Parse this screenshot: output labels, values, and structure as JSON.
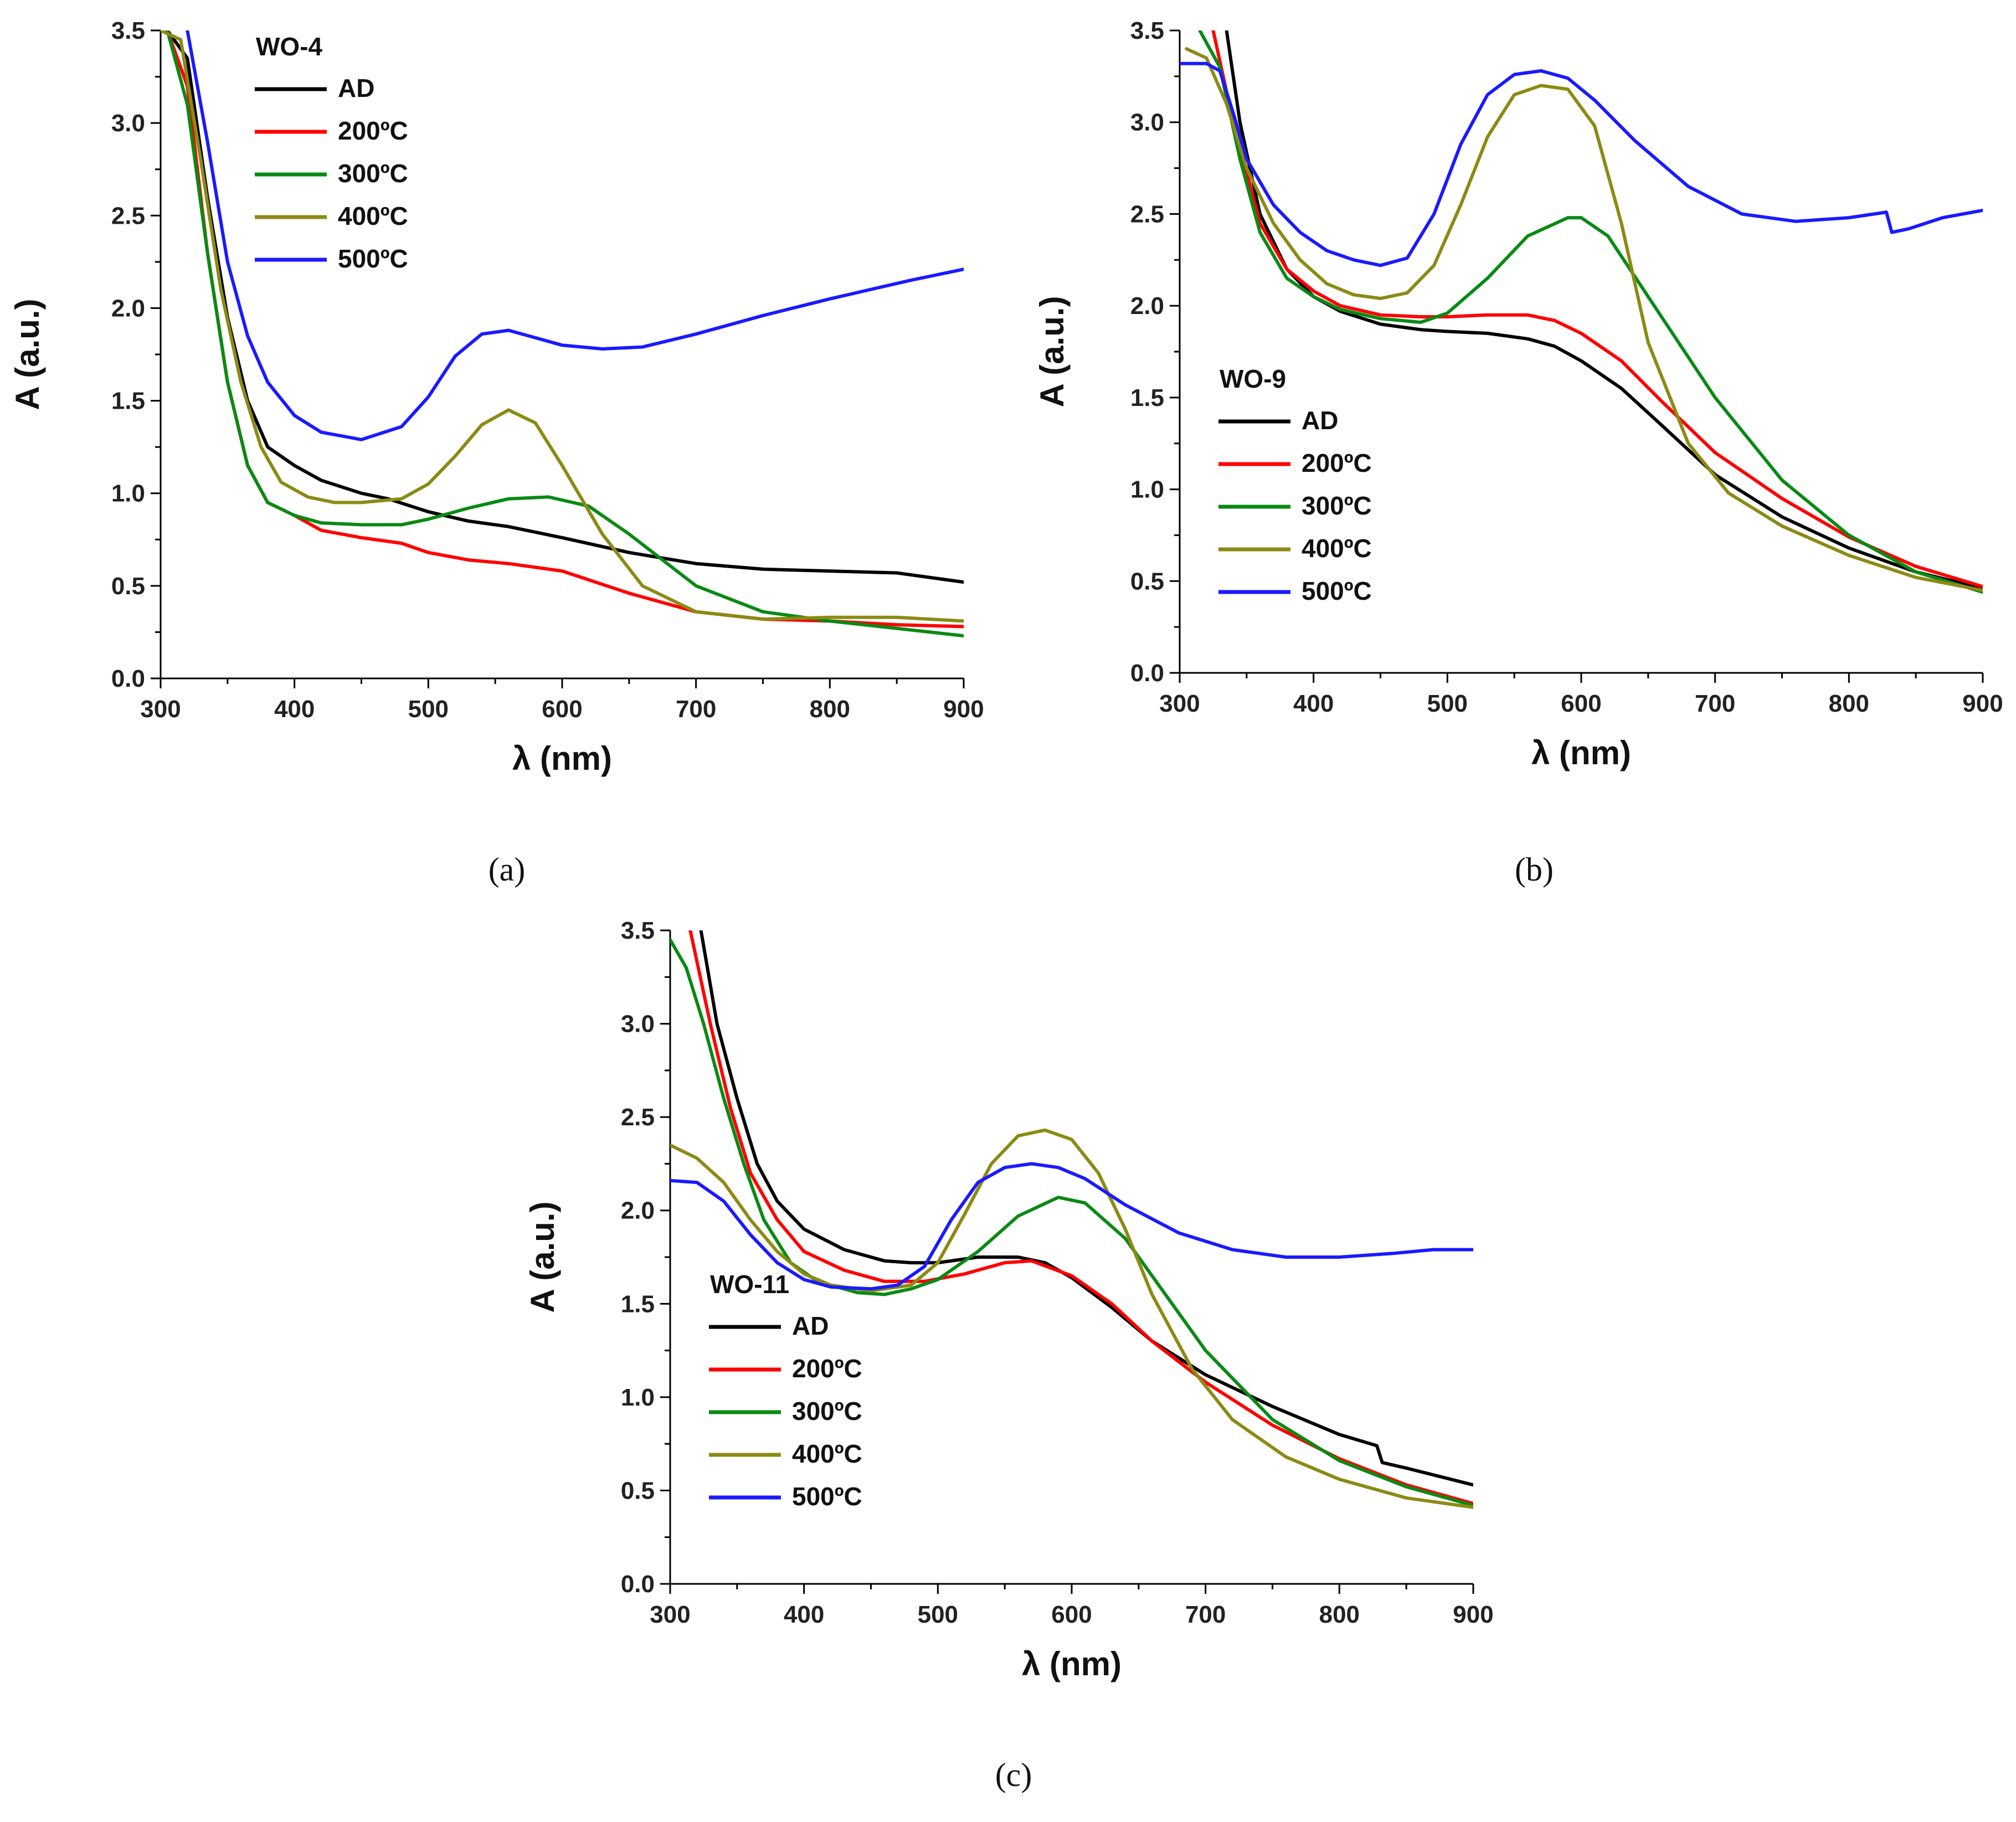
{
  "chart_data": [
    {
      "type": "line",
      "caption": "(a)",
      "legend_title": "WO-4",
      "legend_position": "top-left",
      "xlabel": "λ (nm)",
      "ylabel": "A (a.u.)",
      "xlim": [
        300,
        900
      ],
      "ylim": [
        0,
        3.5
      ],
      "xticks": [
        "300",
        "400",
        "500",
        "600",
        "700",
        "800",
        "900"
      ],
      "yticks": [
        "0.0",
        "0.5",
        "1.0",
        "1.5",
        "2.0",
        "2.5",
        "3.0",
        "3.5"
      ],
      "series": [
        {
          "name": "AD",
          "color": "#000000",
          "x": [
            305,
            320,
            335,
            350,
            365,
            380,
            400,
            420,
            450,
            470,
            500,
            530,
            560,
            600,
            650,
            700,
            750,
            800,
            850,
            880,
            900
          ],
          "y": [
            3.5,
            3.35,
            2.6,
            1.95,
            1.5,
            1.25,
            1.15,
            1.07,
            1.0,
            0.97,
            0.9,
            0.85,
            0.82,
            0.76,
            0.68,
            0.62,
            0.59,
            0.58,
            0.57,
            0.54,
            0.52
          ]
        },
        {
          "name": "200ºC",
          "color": "#ff0000",
          "x": [
            305,
            320,
            335,
            350,
            365,
            380,
            400,
            420,
            450,
            480,
            500,
            530,
            560,
            600,
            650,
            700,
            750,
            800,
            850,
            900
          ],
          "y": [
            3.5,
            3.2,
            2.3,
            1.6,
            1.15,
            0.95,
            0.88,
            0.8,
            0.76,
            0.73,
            0.68,
            0.64,
            0.62,
            0.58,
            0.46,
            0.36,
            0.32,
            0.31,
            0.29,
            0.28
          ]
        },
        {
          "name": "300ºC",
          "color": "#0a8a14",
          "x": [
            305,
            320,
            335,
            350,
            365,
            380,
            400,
            420,
            450,
            480,
            500,
            530,
            560,
            590,
            620,
            650,
            700,
            750,
            800,
            850,
            900
          ],
          "y": [
            3.5,
            3.1,
            2.3,
            1.6,
            1.15,
            0.95,
            0.88,
            0.84,
            0.83,
            0.83,
            0.86,
            0.92,
            0.97,
            0.98,
            0.93,
            0.78,
            0.5,
            0.36,
            0.31,
            0.27,
            0.23
          ]
        },
        {
          "name": "400ºC",
          "color": "#8c8a14",
          "x": [
            300,
            315,
            330,
            345,
            360,
            375,
            390,
            410,
            430,
            450,
            480,
            500,
            520,
            540,
            560,
            580,
            600,
            630,
            660,
            700,
            750,
            800,
            850,
            900
          ],
          "y": [
            3.5,
            3.45,
            2.8,
            2.1,
            1.6,
            1.25,
            1.06,
            0.98,
            0.95,
            0.95,
            0.97,
            1.05,
            1.2,
            1.37,
            1.45,
            1.38,
            1.15,
            0.78,
            0.5,
            0.36,
            0.32,
            0.33,
            0.33,
            0.31
          ]
        },
        {
          "name": "500ºC",
          "color": "#1a1aff",
          "x": [
            320,
            335,
            350,
            365,
            380,
            400,
            420,
            450,
            480,
            500,
            520,
            540,
            560,
            580,
            600,
            630,
            660,
            700,
            750,
            800,
            830,
            860,
            900
          ],
          "y": [
            3.5,
            2.9,
            2.25,
            1.85,
            1.6,
            1.42,
            1.33,
            1.29,
            1.36,
            1.52,
            1.74,
            1.86,
            1.88,
            1.84,
            1.8,
            1.78,
            1.79,
            1.86,
            1.96,
            2.05,
            2.1,
            2.15,
            2.21
          ]
        }
      ]
    },
    {
      "type": "line",
      "caption": "(b)",
      "legend_title": "WO-9",
      "legend_position": "middle-left",
      "xlabel": "λ (nm)",
      "ylabel": "A (a.u.)",
      "xlim": [
        300,
        900
      ],
      "ylim": [
        0,
        3.5
      ],
      "xticks": [
        "300",
        "400",
        "500",
        "600",
        "700",
        "800",
        "900"
      ],
      "yticks": [
        "0.0",
        "0.5",
        "1.0",
        "1.5",
        "2.0",
        "2.5",
        "3.0",
        "3.5"
      ],
      "series": [
        {
          "name": "AD",
          "color": "#000000",
          "x": [
            335,
            345,
            360,
            380,
            400,
            420,
            450,
            480,
            500,
            530,
            560,
            580,
            600,
            630,
            660,
            700,
            750,
            800,
            850,
            900
          ],
          "y": [
            3.5,
            3.0,
            2.5,
            2.2,
            2.05,
            1.97,
            1.9,
            1.87,
            1.86,
            1.85,
            1.82,
            1.78,
            1.7,
            1.55,
            1.35,
            1.08,
            0.85,
            0.68,
            0.55,
            0.46
          ]
        },
        {
          "name": "200ºC",
          "color": "#ff0000",
          "x": [
            325,
            340,
            360,
            380,
            400,
            420,
            450,
            480,
            500,
            530,
            560,
            580,
            600,
            630,
            660,
            700,
            750,
            800,
            850,
            900
          ],
          "y": [
            3.5,
            3.0,
            2.45,
            2.2,
            2.08,
            2.0,
            1.95,
            1.94,
            1.94,
            1.95,
            1.95,
            1.92,
            1.85,
            1.7,
            1.48,
            1.2,
            0.95,
            0.74,
            0.58,
            0.47
          ]
        },
        {
          "name": "300ºC",
          "color": "#0a8a14",
          "x": [
            315,
            330,
            345,
            360,
            380,
            400,
            420,
            450,
            480,
            500,
            530,
            560,
            590,
            600,
            620,
            650,
            700,
            750,
            800,
            850,
            900
          ],
          "y": [
            3.5,
            3.3,
            2.8,
            2.4,
            2.15,
            2.05,
            1.98,
            1.93,
            1.91,
            1.96,
            2.15,
            2.38,
            2.48,
            2.48,
            2.38,
            2.05,
            1.5,
            1.05,
            0.75,
            0.55,
            0.44
          ]
        },
        {
          "name": "400ºC",
          "color": "#8c8a14",
          "x": [
            305,
            320,
            335,
            350,
            370,
            390,
            410,
            430,
            450,
            470,
            490,
            510,
            530,
            550,
            570,
            590,
            610,
            630,
            650,
            680,
            710,
            750,
            800,
            850,
            900
          ],
          "y": [
            3.4,
            3.35,
            3.1,
            2.75,
            2.45,
            2.25,
            2.12,
            2.06,
            2.04,
            2.07,
            2.22,
            2.55,
            2.92,
            3.15,
            3.2,
            3.18,
            2.98,
            2.45,
            1.8,
            1.25,
            0.98,
            0.8,
            0.64,
            0.52,
            0.45
          ]
        },
        {
          "name": "500ºC",
          "color": "#1a1aff",
          "x": [
            300,
            320,
            330,
            340,
            350,
            370,
            390,
            410,
            430,
            450,
            470,
            490,
            510,
            530,
            550,
            570,
            590,
            610,
            640,
            680,
            720,
            760,
            800,
            828,
            832,
            845,
            870,
            900
          ],
          "y": [
            3.32,
            3.32,
            3.28,
            3.05,
            2.8,
            2.55,
            2.4,
            2.3,
            2.25,
            2.22,
            2.26,
            2.5,
            2.88,
            3.15,
            3.26,
            3.28,
            3.24,
            3.12,
            2.9,
            2.65,
            2.5,
            2.46,
            2.48,
            2.51,
            2.4,
            2.42,
            2.48,
            2.52
          ]
        }
      ]
    },
    {
      "type": "line",
      "caption": "(c)",
      "legend_title": "WO-11",
      "legend_position": "bottom-left",
      "xlabel": "λ (nm)",
      "ylabel": "A (a.u.)",
      "xlim": [
        300,
        900
      ],
      "ylim": [
        0,
        3.5
      ],
      "xticks": [
        "300",
        "400",
        "500",
        "600",
        "700",
        "800",
        "900"
      ],
      "yticks": [
        "0.0",
        "0.5",
        "1.0",
        "1.5",
        "2.0",
        "2.5",
        "3.0",
        "3.5"
      ],
      "series": [
        {
          "name": "AD",
          "color": "#000000",
          "x": [
            323,
            335,
            350,
            365,
            380,
            400,
            430,
            460,
            480,
            500,
            530,
            560,
            580,
            600,
            630,
            660,
            700,
            750,
            800,
            828,
            832,
            850,
            900
          ],
          "y": [
            3.5,
            3.0,
            2.6,
            2.25,
            2.05,
            1.9,
            1.79,
            1.73,
            1.72,
            1.72,
            1.75,
            1.75,
            1.72,
            1.64,
            1.48,
            1.3,
            1.12,
            0.95,
            0.8,
            0.74,
            0.65,
            0.62,
            0.53
          ]
        },
        {
          "name": "200ºC",
          "color": "#ff0000",
          "x": [
            315,
            330,
            345,
            360,
            380,
            400,
            430,
            460,
            490,
            520,
            550,
            570,
            600,
            630,
            660,
            700,
            750,
            800,
            850,
            900
          ],
          "y": [
            3.5,
            3.0,
            2.55,
            2.2,
            1.95,
            1.78,
            1.68,
            1.62,
            1.62,
            1.66,
            1.72,
            1.73,
            1.65,
            1.5,
            1.3,
            1.08,
            0.85,
            0.67,
            0.53,
            0.43
          ]
        },
        {
          "name": "300ºC",
          "color": "#0a8a14",
          "x": [
            300,
            312,
            325,
            340,
            355,
            370,
            390,
            410,
            440,
            460,
            480,
            500,
            530,
            560,
            590,
            610,
            640,
            670,
            700,
            750,
            800,
            850,
            900
          ],
          "y": [
            3.45,
            3.3,
            3.0,
            2.6,
            2.25,
            1.95,
            1.72,
            1.62,
            1.56,
            1.55,
            1.58,
            1.63,
            1.78,
            1.97,
            2.07,
            2.04,
            1.85,
            1.55,
            1.25,
            0.88,
            0.66,
            0.52,
            0.42
          ]
        },
        {
          "name": "400ºC",
          "color": "#8c8a14",
          "x": [
            300,
            320,
            340,
            360,
            380,
            400,
            420,
            450,
            480,
            500,
            520,
            540,
            560,
            580,
            600,
            620,
            640,
            660,
            690,
            720,
            760,
            800,
            850,
            900
          ],
          "y": [
            2.35,
            2.28,
            2.15,
            1.95,
            1.78,
            1.66,
            1.6,
            1.57,
            1.6,
            1.72,
            1.98,
            2.25,
            2.4,
            2.43,
            2.38,
            2.2,
            1.9,
            1.55,
            1.15,
            0.88,
            0.68,
            0.56,
            0.46,
            0.41
          ]
        },
        {
          "name": "500ºC",
          "color": "#1a1aff",
          "x": [
            300,
            320,
            340,
            360,
            380,
            400,
            420,
            450,
            470,
            490,
            510,
            530,
            550,
            570,
            590,
            610,
            640,
            680,
            720,
            760,
            800,
            840,
            870,
            900
          ],
          "y": [
            2.16,
            2.15,
            2.05,
            1.87,
            1.72,
            1.63,
            1.59,
            1.58,
            1.6,
            1.7,
            1.95,
            2.15,
            2.23,
            2.25,
            2.23,
            2.17,
            2.03,
            1.88,
            1.79,
            1.75,
            1.75,
            1.77,
            1.79,
            1.79
          ]
        }
      ]
    }
  ]
}
